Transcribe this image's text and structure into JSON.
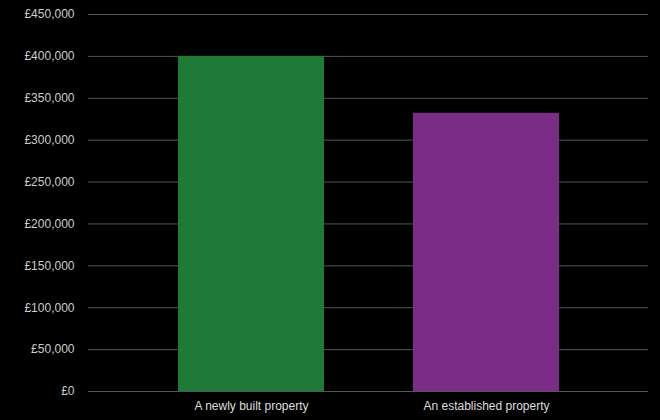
{
  "chart_data": {
    "type": "bar",
    "categories": [
      "A newly built property",
      "An established property"
    ],
    "values": [
      400000,
      332000
    ],
    "colors": [
      "#1e7a36",
      "#7b2c86"
    ],
    "ylim": [
      0,
      450000
    ],
    "yticks": [
      {
        "value": 0,
        "label": "£0"
      },
      {
        "value": 50000,
        "label": "£50,000"
      },
      {
        "value": 100000,
        "label": "£100,000"
      },
      {
        "value": 150000,
        "label": "£150,000"
      },
      {
        "value": 200000,
        "label": "£200,000"
      },
      {
        "value": 250000,
        "label": "£250,000"
      },
      {
        "value": 300000,
        "label": "£300,000"
      },
      {
        "value": 350000,
        "label": "£350,000"
      },
      {
        "value": 400000,
        "label": "£400,000"
      },
      {
        "value": 450000,
        "label": "£450,000"
      }
    ],
    "grid": true
  }
}
